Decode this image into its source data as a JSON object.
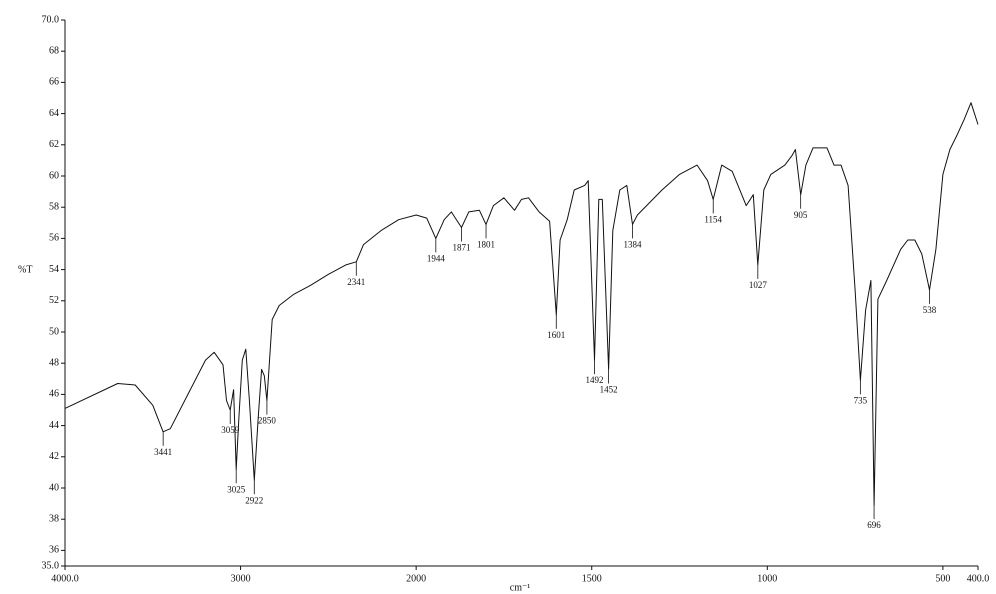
{
  "chart_data": {
    "type": "line",
    "y_label": "%T",
    "x_label": "cm⁻¹",
    "xlim": [
      4000,
      400
    ],
    "ylim": [
      35,
      70
    ],
    "xticks": [
      {
        "value": 4000,
        "label": "4000.0"
      },
      3000,
      2000,
      1500,
      1000,
      500,
      {
        "value": 400,
        "label": "400.0"
      }
    ],
    "yticks": [
      {
        "value": 35,
        "label": "35.0"
      },
      36,
      38,
      40,
      42,
      44,
      46,
      48,
      50,
      52,
      54,
      56,
      58,
      60,
      62,
      64,
      66,
      68,
      {
        "value": 70,
        "label": "70.0"
      }
    ],
    "color": "#111111",
    "x": [
      4000,
      3700,
      3600,
      3500,
      3441,
      3400,
      3300,
      3200,
      3150,
      3100,
      3080,
      3059,
      3040,
      3025,
      3010,
      2990,
      2970,
      2950,
      2922,
      2900,
      2880,
      2865,
      2850,
      2820,
      2780,
      2700,
      2600,
      2500,
      2400,
      2341,
      2300,
      2200,
      2100,
      2000,
      1970,
      1944,
      1920,
      1900,
      1871,
      1850,
      1820,
      1801,
      1780,
      1750,
      1720,
      1700,
      1680,
      1650,
      1620,
      1601,
      1590,
      1570,
      1550,
      1520,
      1510,
      1492,
      1480,
      1470,
      1452,
      1440,
      1420,
      1400,
      1384,
      1370,
      1300,
      1250,
      1200,
      1170,
      1154,
      1130,
      1100,
      1060,
      1040,
      1027,
      1010,
      990,
      950,
      930,
      920,
      905,
      890,
      870,
      830,
      810,
      790,
      770,
      750,
      735,
      720,
      705,
      696,
      685,
      660,
      620,
      600,
      580,
      560,
      538,
      520,
      500,
      480,
      460,
      440,
      420,
      400
    ],
    "values": [
      45.1,
      46.7,
      46.6,
      45.3,
      43.6,
      43.8,
      46.0,
      48.2,
      48.7,
      47.9,
      45.6,
      45.0,
      46.3,
      41.2,
      44.4,
      48.2,
      48.9,
      45.6,
      40.5,
      44.4,
      47.6,
      47.2,
      45.6,
      50.8,
      51.7,
      52.4,
      53.0,
      53.7,
      54.3,
      54.5,
      55.6,
      56.5,
      57.2,
      57.5,
      57.3,
      56.0,
      57.2,
      57.7,
      56.7,
      57.7,
      57.8,
      56.9,
      58.1,
      58.6,
      57.8,
      58.5,
      58.6,
      57.7,
      57.1,
      51.1,
      55.9,
      57.2,
      59.1,
      59.4,
      59.7,
      48.2,
      58.5,
      58.5,
      47.6,
      56.5,
      59.1,
      59.4,
      56.9,
      57.5,
      59.1,
      60.1,
      60.7,
      59.7,
      58.5,
      60.7,
      60.3,
      58.1,
      58.8,
      54.3,
      59.1,
      60.1,
      60.7,
      61.3,
      61.7,
      58.8,
      60.7,
      61.8,
      61.8,
      60.7,
      60.7,
      59.4,
      52.7,
      46.9,
      51.4,
      53.3,
      38.9,
      52.1,
      53.3,
      55.3,
      55.9,
      55.9,
      55.0,
      52.7,
      55.3,
      60.1,
      61.7,
      62.6,
      63.6,
      64.7,
      63.3
    ],
    "annotations": [
      {
        "x": 3441,
        "y": 43.6
      },
      {
        "x": 3059,
        "y": 45.0
      },
      {
        "x": 3025,
        "y": 41.2
      },
      {
        "x": 2922,
        "y": 40.5
      },
      {
        "x": 2850,
        "y": 45.6
      },
      {
        "x": 2341,
        "y": 54.5
      },
      {
        "x": 1944,
        "y": 56.0
      },
      {
        "x": 1871,
        "y": 56.7
      },
      {
        "x": 1801,
        "y": 56.9
      },
      {
        "x": 1601,
        "y": 51.1
      },
      {
        "x": 1492,
        "y": 48.2
      },
      {
        "x": 1452,
        "y": 47.6
      },
      {
        "x": 1384,
        "y": 56.9
      },
      {
        "x": 1154,
        "y": 58.5
      },
      {
        "x": 1027,
        "y": 54.3
      },
      {
        "x": 905,
        "y": 58.8
      },
      {
        "x": 735,
        "y": 46.9
      },
      {
        "x": 696,
        "y": 38.9
      },
      {
        "x": 538,
        "y": 52.7
      }
    ]
  }
}
